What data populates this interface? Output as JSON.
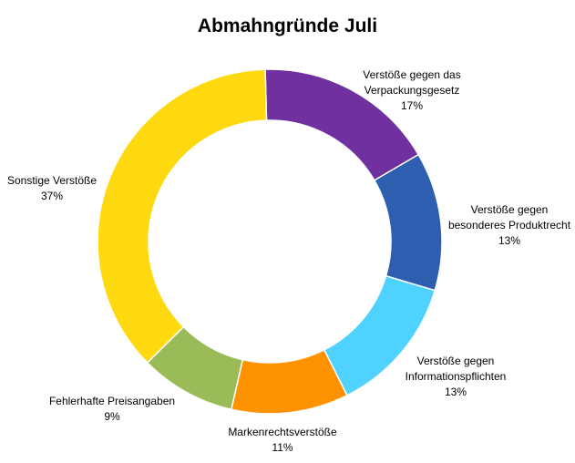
{
  "chart_data": {
    "type": "pie",
    "subtype": "doughnut",
    "title": "Abmahngründe Juli",
    "legend": "none",
    "slices": [
      {
        "label_lines": [
          "Verstöße gegen das",
          "Verpackungsgesetz"
        ],
        "pct_label": "17%",
        "value": 17,
        "color": "#7030A0"
      },
      {
        "label_lines": [
          "Verstöße gegen",
          "besonderes Produktrecht"
        ],
        "pct_label": "13%",
        "value": 13,
        "color": "#2E5EB0"
      },
      {
        "label_lines": [
          "Verstöße gegen",
          "Informationspflichten"
        ],
        "pct_label": "13%",
        "value": 13,
        "color": "#4FD2FF"
      },
      {
        "label_lines": [
          "Markenrechtsverstöße"
        ],
        "pct_label": "11%",
        "value": 11,
        "color": "#FF9200"
      },
      {
        "label_lines": [
          "Fehlerhafte Preisangaben"
        ],
        "pct_label": "9%",
        "value": 9,
        "color": "#9BBB59"
      },
      {
        "label_lines": [
          "Sonstige Verstöße"
        ],
        "pct_label": "37%",
        "value": 37,
        "color": "#FFD910"
      }
    ]
  }
}
